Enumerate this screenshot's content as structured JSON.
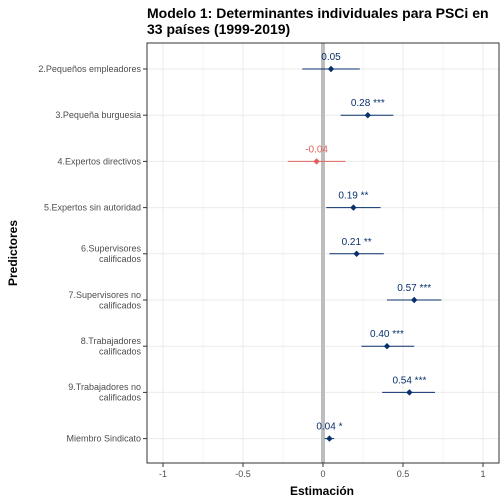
{
  "chart_data": {
    "type": "scatter",
    "title_lines": [
      "Modelo 1: Determinantes individuales para PSCi en",
      "33 países (1999-2019)"
    ],
    "xlabel": "Estimación",
    "ylabel": "Predictores",
    "xlim": [
      -1.1,
      1.1
    ],
    "x_ticks": [
      {
        "value": -1,
        "label": "-1"
      },
      {
        "value": -0.5,
        "label": "-0.5"
      },
      {
        "value": 0,
        "label": "0"
      },
      {
        "value": 0.5,
        "label": "0.5"
      },
      {
        "value": 1,
        "label": "1"
      }
    ],
    "reference_line": 0,
    "grid": true,
    "colors": {
      "positive": "#08306b",
      "negative": "#e0625f",
      "zero_line": "#bdbdbd",
      "grid": "#ebebeb"
    },
    "series": [
      {
        "category_lines": [
          "2.Pequeños empleadores"
        ],
        "estimate": 0.05,
        "ci": [
          -0.13,
          0.23
        ],
        "label": "0.05"
      },
      {
        "category_lines": [
          "3.Pequeña burguesia"
        ],
        "estimate": 0.28,
        "ci": [
          0.11,
          0.44
        ],
        "label": "0.28 ***"
      },
      {
        "category_lines": [
          "4.Expertos directivos"
        ],
        "estimate": -0.04,
        "ci": [
          -0.22,
          0.14
        ],
        "label": "-0.04"
      },
      {
        "category_lines": [
          "5.Expertos sin autoridad"
        ],
        "estimate": 0.19,
        "ci": [
          0.02,
          0.36
        ],
        "label": "0.19 **"
      },
      {
        "category_lines": [
          "6.Supervisores",
          "calificados"
        ],
        "estimate": 0.21,
        "ci": [
          0.04,
          0.38
        ],
        "label": "0.21 **"
      },
      {
        "category_lines": [
          "7.Supervisores no",
          "calificados"
        ],
        "estimate": 0.57,
        "ci": [
          0.4,
          0.74
        ],
        "label": "0.57 ***"
      },
      {
        "category_lines": [
          "8.Trabajadores",
          "calificados"
        ],
        "estimate": 0.4,
        "ci": [
          0.24,
          0.57
        ],
        "label": "0.40 ***"
      },
      {
        "category_lines": [
          "9.Trabajadores no",
          "calificados"
        ],
        "estimate": 0.54,
        "ci": [
          0.37,
          0.7
        ],
        "label": "0.54 ***"
      },
      {
        "category_lines": [
          "Miembro Sindicato"
        ],
        "estimate": 0.04,
        "ci": [
          0.01,
          0.07
        ],
        "label": "0.04 *"
      }
    ]
  }
}
